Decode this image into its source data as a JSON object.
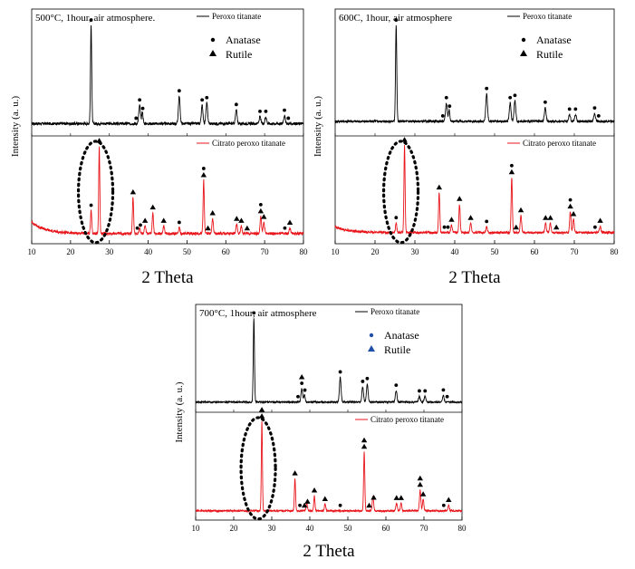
{
  "chart_data": [
    {
      "type": "line",
      "title": "500°C, 1hour, air atmosphere.",
      "xlabel": "2 Theta",
      "ylabel": "Intensity (a. u.)",
      "xlim": [
        10,
        80
      ],
      "xticks": [
        "10",
        "20",
        "30",
        "40",
        "50",
        "60",
        "70",
        "80"
      ],
      "legend": {
        "anatase": "Anatase",
        "rutile": "Rutile"
      },
      "series": [
        {
          "name": "Peroxo titanate",
          "color": "#000000",
          "baseline": 0.06,
          "noise": 0.012,
          "low_angle_rise": 0.0,
          "peaks": [
            {
              "x": 25.3,
              "h": 0.86,
              "w": 0.22
            },
            {
              "x": 37.8,
              "h": 0.16,
              "w": 0.3
            },
            {
              "x": 38.5,
              "h": 0.1,
              "w": 0.25
            },
            {
              "x": 48.0,
              "h": 0.24,
              "w": 0.3
            },
            {
              "x": 53.9,
              "h": 0.16,
              "w": 0.3
            },
            {
              "x": 55.1,
              "h": 0.18,
              "w": 0.3
            },
            {
              "x": 62.7,
              "h": 0.12,
              "w": 0.3
            },
            {
              "x": 68.8,
              "h": 0.06,
              "w": 0.3
            },
            {
              "x": 70.3,
              "h": 0.06,
              "w": 0.3
            },
            {
              "x": 75.1,
              "h": 0.07,
              "w": 0.3
            }
          ],
          "markers": [
            {
              "x": 25.3,
              "type": "anatase"
            },
            {
              "x": 36.9,
              "type": "anatase"
            },
            {
              "x": 37.8,
              "type": "anatase"
            },
            {
              "x": 38.6,
              "type": "anatase"
            },
            {
              "x": 48.0,
              "type": "anatase"
            },
            {
              "x": 53.9,
              "type": "anatase"
            },
            {
              "x": 55.1,
              "type": "anatase"
            },
            {
              "x": 62.7,
              "type": "anatase"
            },
            {
              "x": 68.8,
              "type": "anatase"
            },
            {
              "x": 70.3,
              "type": "anatase"
            },
            {
              "x": 75.1,
              "type": "anatase"
            },
            {
              "x": 76.1,
              "type": "anatase"
            }
          ]
        },
        {
          "name": "Citrato peroxo titanate",
          "color": "#e8151b",
          "baseline": 0.05,
          "noise": 0.014,
          "low_angle_rise": 0.12,
          "peaks": [
            {
              "x": 25.3,
              "h": 0.24,
              "w": 0.22
            },
            {
              "x": 27.4,
              "h": 0.92,
              "w": 0.2
            },
            {
              "x": 36.1,
              "h": 0.38,
              "w": 0.22
            },
            {
              "x": 37.8,
              "h": 0.06,
              "w": 0.25
            },
            {
              "x": 39.2,
              "h": 0.08,
              "w": 0.25
            },
            {
              "x": 41.2,
              "h": 0.22,
              "w": 0.22
            },
            {
              "x": 44.0,
              "h": 0.08,
              "w": 0.25
            },
            {
              "x": 48.0,
              "h": 0.06,
              "w": 0.25
            },
            {
              "x": 54.3,
              "h": 0.56,
              "w": 0.22
            },
            {
              "x": 56.6,
              "h": 0.16,
              "w": 0.25
            },
            {
              "x": 62.8,
              "h": 0.1,
              "w": 0.25
            },
            {
              "x": 64.0,
              "h": 0.08,
              "w": 0.25
            },
            {
              "x": 69.0,
              "h": 0.18,
              "w": 0.25
            },
            {
              "x": 69.8,
              "h": 0.12,
              "w": 0.25
            },
            {
              "x": 76.5,
              "h": 0.06,
              "w": 0.25
            }
          ],
          "markers": [
            {
              "x": 25.3,
              "type": "anatase"
            },
            {
              "x": 27.4,
              "type": "rutile"
            },
            {
              "x": 36.1,
              "type": "rutile"
            },
            {
              "x": 37.2,
              "type": "anatase"
            },
            {
              "x": 38.0,
              "type": "anatase"
            },
            {
              "x": 39.2,
              "type": "rutile"
            },
            {
              "x": 41.2,
              "type": "rutile"
            },
            {
              "x": 44.0,
              "type": "rutile"
            },
            {
              "x": 48.0,
              "type": "anatase"
            },
            {
              "x": 54.3,
              "type": "rutile"
            },
            {
              "x": 54.3,
              "type": "anatase",
              "stack": 1
            },
            {
              "x": 55.4,
              "type": "rutile"
            },
            {
              "x": 56.6,
              "type": "rutile"
            },
            {
              "x": 62.8,
              "type": "rutile"
            },
            {
              "x": 64.0,
              "type": "rutile"
            },
            {
              "x": 65.5,
              "type": "rutile"
            },
            {
              "x": 69.0,
              "type": "rutile"
            },
            {
              "x": 69.0,
              "type": "anatase",
              "stack": 1
            },
            {
              "x": 69.8,
              "type": "rutile"
            },
            {
              "x": 75.2,
              "type": "anatase"
            },
            {
              "x": 76.5,
              "type": "rutile"
            }
          ]
        }
      ],
      "highlight_ellipse_x": 27.4
    },
    {
      "type": "line",
      "title": "600C, 1hour, air atmosphere",
      "xlabel": "2 Theta",
      "ylabel": "Intensity (a. u.)",
      "xlim": [
        10,
        80
      ],
      "xticks": [
        "10",
        "20",
        "30",
        "40",
        "50",
        "60",
        "70",
        "80"
      ],
      "legend": {
        "anatase": "Anatase",
        "rutile": "Rutile"
      },
      "series": [
        {
          "name": "Peroxo titanate",
          "color": "#000000",
          "baseline": 0.08,
          "noise": 0.01,
          "low_angle_rise": 0.0,
          "peaks": [
            {
              "x": 25.3,
              "h": 0.84,
              "w": 0.22
            },
            {
              "x": 37.9,
              "h": 0.16,
              "w": 0.3
            },
            {
              "x": 38.6,
              "h": 0.1,
              "w": 0.25
            },
            {
              "x": 48.0,
              "h": 0.24,
              "w": 0.3
            },
            {
              "x": 53.9,
              "h": 0.16,
              "w": 0.3
            },
            {
              "x": 55.1,
              "h": 0.18,
              "w": 0.3
            },
            {
              "x": 62.7,
              "h": 0.12,
              "w": 0.3
            },
            {
              "x": 68.8,
              "h": 0.06,
              "w": 0.3
            },
            {
              "x": 70.3,
              "h": 0.06,
              "w": 0.3
            },
            {
              "x": 75.1,
              "h": 0.07,
              "w": 0.3
            }
          ],
          "markers": [
            {
              "x": 25.3,
              "type": "anatase"
            },
            {
              "x": 37.0,
              "type": "anatase"
            },
            {
              "x": 37.9,
              "type": "anatase"
            },
            {
              "x": 38.7,
              "type": "anatase"
            },
            {
              "x": 48.0,
              "type": "anatase"
            },
            {
              "x": 53.9,
              "type": "anatase"
            },
            {
              "x": 55.1,
              "type": "anatase"
            },
            {
              "x": 62.7,
              "type": "anatase"
            },
            {
              "x": 68.8,
              "type": "anatase"
            },
            {
              "x": 70.3,
              "type": "anatase"
            },
            {
              "x": 75.1,
              "type": "anatase"
            },
            {
              "x": 76.1,
              "type": "anatase"
            }
          ]
        },
        {
          "name": "Citrato peroxo titanate",
          "color": "#e8151b",
          "baseline": 0.06,
          "noise": 0.012,
          "low_angle_rise": 0.06,
          "peaks": [
            {
              "x": 25.3,
              "h": 0.1,
              "w": 0.22
            },
            {
              "x": 27.4,
              "h": 0.92,
              "w": 0.2
            },
            {
              "x": 36.1,
              "h": 0.42,
              "w": 0.22
            },
            {
              "x": 39.2,
              "h": 0.08,
              "w": 0.25
            },
            {
              "x": 41.2,
              "h": 0.3,
              "w": 0.22
            },
            {
              "x": 44.0,
              "h": 0.1,
              "w": 0.25
            },
            {
              "x": 48.0,
              "h": 0.06,
              "w": 0.25
            },
            {
              "x": 54.3,
              "h": 0.58,
              "w": 0.22
            },
            {
              "x": 56.6,
              "h": 0.18,
              "w": 0.25
            },
            {
              "x": 62.8,
              "h": 0.1,
              "w": 0.25
            },
            {
              "x": 64.0,
              "h": 0.1,
              "w": 0.25
            },
            {
              "x": 69.0,
              "h": 0.22,
              "w": 0.25
            },
            {
              "x": 69.8,
              "h": 0.14,
              "w": 0.25
            },
            {
              "x": 76.5,
              "h": 0.07,
              "w": 0.25
            }
          ],
          "markers": [
            {
              "x": 25.3,
              "type": "anatase"
            },
            {
              "x": 27.4,
              "type": "rutile"
            },
            {
              "x": 36.1,
              "type": "rutile"
            },
            {
              "x": 37.4,
              "type": "anatase"
            },
            {
              "x": 38.3,
              "type": "anatase"
            },
            {
              "x": 39.2,
              "type": "rutile"
            },
            {
              "x": 41.2,
              "type": "rutile"
            },
            {
              "x": 44.0,
              "type": "rutile"
            },
            {
              "x": 48.0,
              "type": "anatase"
            },
            {
              "x": 54.3,
              "type": "rutile"
            },
            {
              "x": 54.3,
              "type": "anatase",
              "stack": 1
            },
            {
              "x": 55.4,
              "type": "rutile"
            },
            {
              "x": 56.6,
              "type": "rutile"
            },
            {
              "x": 62.8,
              "type": "rutile"
            },
            {
              "x": 64.0,
              "type": "rutile"
            },
            {
              "x": 65.5,
              "type": "rutile"
            },
            {
              "x": 69.0,
              "type": "rutile"
            },
            {
              "x": 69.0,
              "type": "anatase",
              "stack": 1
            },
            {
              "x": 69.8,
              "type": "rutile"
            },
            {
              "x": 75.2,
              "type": "anatase"
            },
            {
              "x": 76.5,
              "type": "rutile"
            }
          ]
        }
      ],
      "highlight_ellipse_x": 27.4
    },
    {
      "type": "line",
      "title": "700°C, 1hour, air atmosphere",
      "xlabel": "2 Theta",
      "ylabel": "Intensity (a. u.)",
      "xlim": [
        10,
        80
      ],
      "xticks": [
        "10",
        "20",
        "30",
        "40",
        "50",
        "60",
        "70",
        "80"
      ],
      "legend": {
        "anatase": "Anatase",
        "rutile": "Rutile"
      },
      "legend_marker_color": "#1f4fa8",
      "series": [
        {
          "name": "Peroxo titanate",
          "color": "#000000",
          "baseline": 0.05,
          "noise": 0.008,
          "low_angle_rise": 0.0,
          "peaks": [
            {
              "x": 25.3,
              "h": 0.88,
              "w": 0.22
            },
            {
              "x": 37.9,
              "h": 0.14,
              "w": 0.3
            },
            {
              "x": 38.6,
              "h": 0.08,
              "w": 0.25
            },
            {
              "x": 48.0,
              "h": 0.26,
              "w": 0.3
            },
            {
              "x": 53.9,
              "h": 0.16,
              "w": 0.3
            },
            {
              "x": 55.1,
              "h": 0.19,
              "w": 0.3
            },
            {
              "x": 62.7,
              "h": 0.12,
              "w": 0.3
            },
            {
              "x": 68.8,
              "h": 0.06,
              "w": 0.3
            },
            {
              "x": 70.3,
              "h": 0.06,
              "w": 0.3
            },
            {
              "x": 75.1,
              "h": 0.07,
              "w": 0.3
            }
          ],
          "markers": [
            {
              "x": 25.3,
              "type": "anatase"
            },
            {
              "x": 36.9,
              "type": "anatase"
            },
            {
              "x": 37.9,
              "type": "anatase"
            },
            {
              "x": 37.9,
              "type": "rutile",
              "stack": 1
            },
            {
              "x": 38.7,
              "type": "anatase"
            },
            {
              "x": 48.0,
              "type": "anatase"
            },
            {
              "x": 53.9,
              "type": "anatase"
            },
            {
              "x": 55.1,
              "type": "anatase"
            },
            {
              "x": 62.7,
              "type": "anatase"
            },
            {
              "x": 68.8,
              "type": "anatase"
            },
            {
              "x": 70.3,
              "type": "anatase"
            },
            {
              "x": 75.1,
              "type": "anatase"
            },
            {
              "x": 76.1,
              "type": "anatase"
            }
          ]
        },
        {
          "name": "Citrato peroxo titanate",
          "color": "#e8151b",
          "baseline": 0.04,
          "noise": 0.009,
          "low_angle_rise": 0.0,
          "peaks": [
            {
              "x": 27.4,
              "h": 0.94,
              "w": 0.2
            },
            {
              "x": 36.1,
              "h": 0.34,
              "w": 0.22
            },
            {
              "x": 39.2,
              "h": 0.08,
              "w": 0.25
            },
            {
              "x": 41.2,
              "h": 0.16,
              "w": 0.22
            },
            {
              "x": 44.0,
              "h": 0.07,
              "w": 0.25
            },
            {
              "x": 54.3,
              "h": 0.62,
              "w": 0.22
            },
            {
              "x": 56.6,
              "h": 0.16,
              "w": 0.25
            },
            {
              "x": 62.8,
              "h": 0.08,
              "w": 0.25
            },
            {
              "x": 64.0,
              "h": 0.08,
              "w": 0.25
            },
            {
              "x": 69.0,
              "h": 0.22,
              "w": 0.25
            },
            {
              "x": 69.8,
              "h": 0.12,
              "w": 0.25
            },
            {
              "x": 76.5,
              "h": 0.06,
              "w": 0.25
            }
          ],
          "markers": [
            {
              "x": 27.4,
              "type": "rutile"
            },
            {
              "x": 27.4,
              "type": "rutile",
              "stack": 1
            },
            {
              "x": 36.1,
              "type": "rutile"
            },
            {
              "x": 37.4,
              "type": "anatase"
            },
            {
              "x": 38.6,
              "type": "rutile"
            },
            {
              "x": 39.4,
              "type": "rutile"
            },
            {
              "x": 41.2,
              "type": "rutile"
            },
            {
              "x": 44.0,
              "type": "rutile"
            },
            {
              "x": 48.0,
              "type": "anatase"
            },
            {
              "x": 54.3,
              "type": "rutile"
            },
            {
              "x": 54.3,
              "type": "rutile",
              "stack": 1
            },
            {
              "x": 55.6,
              "type": "rutile"
            },
            {
              "x": 56.8,
              "type": "rutile"
            },
            {
              "x": 62.8,
              "type": "rutile"
            },
            {
              "x": 64.0,
              "type": "rutile"
            },
            {
              "x": 69.0,
              "type": "rutile"
            },
            {
              "x": 69.0,
              "type": "rutile",
              "stack": 1
            },
            {
              "x": 69.8,
              "type": "rutile"
            },
            {
              "x": 75.2,
              "type": "anatase"
            },
            {
              "x": 76.5,
              "type": "rutile"
            }
          ]
        }
      ],
      "highlight_ellipse_x": 27.4
    }
  ]
}
